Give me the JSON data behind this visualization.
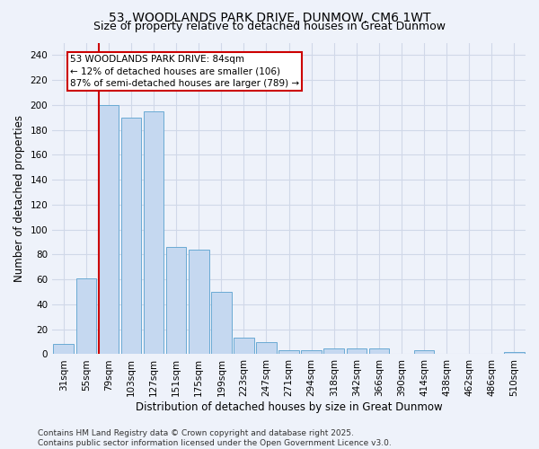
{
  "title_line1": "53, WOODLANDS PARK DRIVE, DUNMOW, CM6 1WT",
  "title_line2": "Size of property relative to detached houses in Great Dunmow",
  "xlabel": "Distribution of detached houses by size in Great Dunmow",
  "ylabel": "Number of detached properties",
  "categories": [
    "31sqm",
    "55sqm",
    "79sqm",
    "103sqm",
    "127sqm",
    "151sqm",
    "175sqm",
    "199sqm",
    "223sqm",
    "247sqm",
    "271sqm",
    "294sqm",
    "318sqm",
    "342sqm",
    "366sqm",
    "390sqm",
    "414sqm",
    "438sqm",
    "462sqm",
    "486sqm",
    "510sqm"
  ],
  "values": [
    8,
    61,
    200,
    190,
    195,
    86,
    84,
    50,
    13,
    10,
    3,
    3,
    5,
    5,
    5,
    0,
    3,
    0,
    0,
    0,
    2
  ],
  "bar_color": "#c5d8f0",
  "bar_edge_color": "#6aaad4",
  "vline_color": "#cc0000",
  "annotation_text": "53 WOODLANDS PARK DRIVE: 84sqm\n← 12% of detached houses are smaller (106)\n87% of semi-detached houses are larger (789) →",
  "annotation_box_color": "white",
  "annotation_box_edge": "#cc0000",
  "ylim": [
    0,
    250
  ],
  "yticks": [
    0,
    20,
    40,
    60,
    80,
    100,
    120,
    140,
    160,
    180,
    200,
    220,
    240
  ],
  "footer_line1": "Contains HM Land Registry data © Crown copyright and database right 2025.",
  "footer_line2": "Contains public sector information licensed under the Open Government Licence v3.0.",
  "bg_color": "#eef2fa",
  "grid_color": "#d0d8e8",
  "title_fontsize": 10,
  "subtitle_fontsize": 9,
  "axis_label_fontsize": 8.5,
  "tick_fontsize": 7.5,
  "annotation_fontsize": 7.5,
  "footer_fontsize": 6.5
}
